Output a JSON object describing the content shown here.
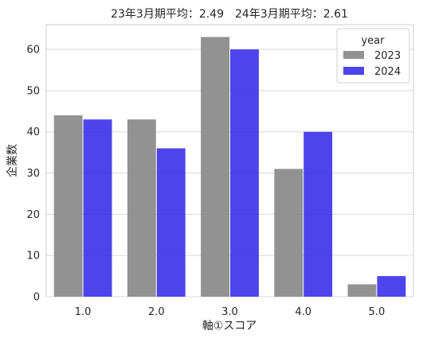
{
  "chart_data": {
    "type": "bar",
    "title": "23年3月期平均：2.49　24年3月期平均：2.61",
    "xlabel": "軸①スコア",
    "ylabel": "企業数",
    "categories": [
      "1.0",
      "2.0",
      "3.0",
      "4.0",
      "5.0"
    ],
    "series": [
      {
        "name": "2023",
        "values": [
          44,
          43,
          63,
          31,
          3
        ],
        "color": "#8c8c8c"
      },
      {
        "name": "2024",
        "values": [
          43,
          36,
          60,
          40,
          5
        ],
        "color": "#2e25e8"
      }
    ],
    "ylim": [
      0,
      66
    ],
    "yticks": [
      0,
      10,
      20,
      30,
      40,
      50,
      60
    ],
    "grid": true,
    "legend": {
      "title": "year",
      "placement": "top-right"
    }
  }
}
